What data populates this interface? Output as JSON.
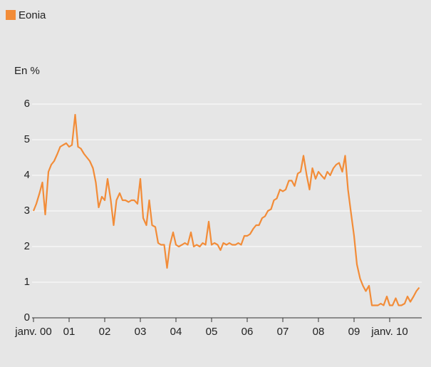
{
  "chart_data": {
    "type": "line",
    "title": "Eonia",
    "y_label": "En %",
    "x": [
      2000.0,
      2000.08,
      2000.17,
      2000.25,
      2000.33,
      2000.42,
      2000.5,
      2000.58,
      2000.67,
      2000.75,
      2000.83,
      2000.92,
      2001.0,
      2001.08,
      2001.17,
      2001.25,
      2001.33,
      2001.42,
      2001.5,
      2001.58,
      2001.67,
      2001.75,
      2001.83,
      2001.92,
      2002.0,
      2002.08,
      2002.17,
      2002.25,
      2002.33,
      2002.42,
      2002.5,
      2002.58,
      2002.67,
      2002.75,
      2002.83,
      2002.92,
      2003.0,
      2003.08,
      2003.17,
      2003.25,
      2003.33,
      2003.42,
      2003.5,
      2003.58,
      2003.67,
      2003.75,
      2003.83,
      2003.92,
      2004.0,
      2004.08,
      2004.17,
      2004.25,
      2004.33,
      2004.42,
      2004.5,
      2004.58,
      2004.67,
      2004.75,
      2004.83,
      2004.92,
      2005.0,
      2005.08,
      2005.17,
      2005.25,
      2005.33,
      2005.42,
      2005.5,
      2005.58,
      2005.67,
      2005.75,
      2005.83,
      2005.92,
      2006.0,
      2006.08,
      2006.17,
      2006.25,
      2006.33,
      2006.42,
      2006.5,
      2006.58,
      2006.67,
      2006.75,
      2006.83,
      2006.92,
      2007.0,
      2007.08,
      2007.17,
      2007.25,
      2007.33,
      2007.42,
      2007.5,
      2007.58,
      2007.67,
      2007.75,
      2007.83,
      2007.92,
      2008.0,
      2008.08,
      2008.17,
      2008.25,
      2008.33,
      2008.42,
      2008.5,
      2008.58,
      2008.67,
      2008.75,
      2008.83,
      2008.92,
      2009.0,
      2009.08,
      2009.17,
      2009.25,
      2009.33,
      2009.42,
      2009.5,
      2009.58,
      2009.67,
      2009.75,
      2009.83,
      2009.92,
      2010.0,
      2010.08,
      2010.17,
      2010.25,
      2010.33,
      2010.42,
      2010.5,
      2010.58,
      2010.67,
      2010.75,
      2010.83
    ],
    "series": [
      {
        "name": "Eonia",
        "color": "#f28c38",
        "values": [
          3.0,
          3.2,
          3.5,
          3.8,
          2.9,
          4.1,
          4.3,
          4.4,
          4.6,
          4.8,
          4.85,
          4.9,
          4.8,
          4.85,
          5.7,
          4.8,
          4.75,
          4.6,
          4.5,
          4.4,
          4.2,
          3.8,
          3.1,
          3.4,
          3.3,
          3.9,
          3.3,
          2.6,
          3.3,
          3.5,
          3.3,
          3.3,
          3.25,
          3.3,
          3.3,
          3.2,
          3.9,
          2.8,
          2.6,
          3.3,
          2.6,
          2.55,
          2.1,
          2.05,
          2.05,
          1.4,
          2.05,
          2.4,
          2.05,
          2.0,
          2.05,
          2.1,
          2.05,
          2.4,
          2.0,
          2.05,
          2.0,
          2.1,
          2.05,
          2.7,
          2.05,
          2.1,
          2.05,
          1.9,
          2.1,
          2.05,
          2.1,
          2.05,
          2.05,
          2.1,
          2.05,
          2.3,
          2.3,
          2.35,
          2.5,
          2.6,
          2.6,
          2.8,
          2.85,
          3.0,
          3.05,
          3.3,
          3.35,
          3.6,
          3.55,
          3.6,
          3.85,
          3.85,
          3.7,
          4.05,
          4.1,
          4.55,
          4.0,
          3.6,
          4.2,
          3.9,
          4.1,
          4.0,
          3.9,
          4.1,
          4.0,
          4.2,
          4.3,
          4.35,
          4.1,
          4.55,
          3.6,
          2.9,
          2.3,
          1.5,
          1.1,
          0.9,
          0.75,
          0.9,
          0.35,
          0.35,
          0.35,
          0.4,
          0.35,
          0.6,
          0.35,
          0.35,
          0.55,
          0.35,
          0.35,
          0.4,
          0.6,
          0.45,
          0.6,
          0.75,
          0.85
        ]
      }
    ],
    "xlim": [
      2000,
      2010.9
    ],
    "xticks": [
      {
        "value": 2000,
        "label": "janv. 00"
      },
      {
        "value": 2001,
        "label": "01"
      },
      {
        "value": 2002,
        "label": "02"
      },
      {
        "value": 2003,
        "label": "03"
      },
      {
        "value": 2004,
        "label": "04"
      },
      {
        "value": 2005,
        "label": "05"
      },
      {
        "value": 2006,
        "label": "06"
      },
      {
        "value": 2007,
        "label": "07"
      },
      {
        "value": 2008,
        "label": "08"
      },
      {
        "value": 2009,
        "label": "09"
      },
      {
        "value": 2010,
        "label": "janv. 10"
      }
    ],
    "ylim": [
      0,
      6
    ],
    "yticks": [
      0,
      1,
      2,
      3,
      4,
      5,
      6
    ],
    "grid": true
  }
}
